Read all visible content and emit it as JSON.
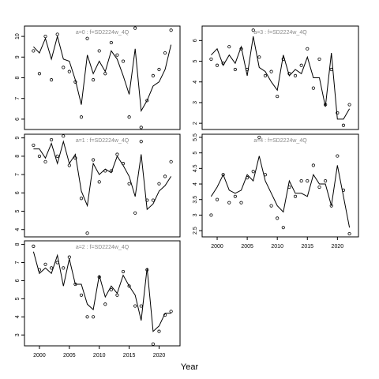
{
  "figure": {
    "xlabel": "Year"
  },
  "chart_data": [
    {
      "type": "line",
      "title": "a=0 : f=SD2224w_4Q",
      "xlim": [
        1997.5,
        2023.5
      ],
      "ylim": [
        5.5,
        10.5
      ],
      "yticks": [
        6,
        7,
        8,
        9,
        10
      ],
      "xticks": [],
      "series": [
        {
          "style": "line",
          "x": [
            1999,
            2000,
            2001,
            2002,
            2003,
            2004,
            2005,
            2006,
            2007,
            2008,
            2009,
            2010,
            2011,
            2012,
            2013,
            2014,
            2015,
            2016,
            2017,
            2018,
            2019,
            2020,
            2021,
            2022
          ],
          "values": [
            9.5,
            9.2,
            9.9,
            8.9,
            10.0,
            8.9,
            8.8,
            7.9,
            6.7,
            9.1,
            8.2,
            8.8,
            8.3,
            9.3,
            8.9,
            8.1,
            7.2,
            9.4,
            6.4,
            6.9,
            7.6,
            7.8,
            8.4,
            9.6
          ]
        },
        {
          "style": "points",
          "x": [
            1999,
            2000,
            2001,
            2002,
            2003,
            2004,
            2005,
            2006,
            2007,
            2008,
            2009,
            2010,
            2011,
            2012,
            2013,
            2014,
            2015,
            2016,
            2017,
            2018,
            2019,
            2020,
            2021,
            2022
          ],
          "values": [
            9.3,
            8.2,
            10.0,
            7.9,
            10.1,
            8.5,
            8.3,
            7.8,
            6.1,
            9.9,
            7.9,
            9.3,
            8.2,
            9.7,
            9.1,
            8.8,
            6.1,
            10.4,
            5.6,
            6.9,
            8.1,
            8.4,
            9.2,
            10.3
          ]
        }
      ]
    },
    {
      "type": "line",
      "title": "a=3 : f=SD2224w_4Q",
      "xlim": [
        1997.5,
        2023.5
      ],
      "ylim": [
        1.7,
        6.7
      ],
      "yticks": [
        2,
        3,
        4,
        5,
        6
      ],
      "xticks": [],
      "series": [
        {
          "style": "line",
          "x": [
            1999,
            2000,
            2001,
            2002,
            2003,
            2004,
            2005,
            2006,
            2007,
            2008,
            2009,
            2010,
            2011,
            2012,
            2013,
            2014,
            2015,
            2016,
            2017,
            2018,
            2019,
            2020,
            2021,
            2022
          ],
          "values": [
            5.3,
            5.6,
            4.8,
            5.3,
            4.9,
            5.7,
            4.3,
            6.2,
            4.7,
            4.5,
            4.0,
            3.6,
            5.3,
            4.3,
            4.6,
            4.4,
            5.2,
            4.2,
            4.2,
            2.8,
            5.4,
            2.2,
            2.2,
            2.7
          ]
        },
        {
          "style": "points",
          "x": [
            1999,
            2000,
            2001,
            2002,
            2003,
            2004,
            2005,
            2006,
            2007,
            2008,
            2009,
            2010,
            2011,
            2012,
            2013,
            2014,
            2015,
            2016,
            2017,
            2018,
            2019,
            2020,
            2021,
            2022
          ],
          "values": [
            5.1,
            4.8,
            4.9,
            5.7,
            4.6,
            5.6,
            4.6,
            6.5,
            5.2,
            4.3,
            4.5,
            3.3,
            5.1,
            4.4,
            4.3,
            4.8,
            5.6,
            3.7,
            5.1,
            2.9,
            4.6,
            2.5,
            1.9,
            2.9
          ]
        }
      ]
    },
    {
      "type": "line",
      "title": "a=1 : f=SD2224w_4Q",
      "xlim": [
        1997.5,
        2023.5
      ],
      "ylim": [
        3.6,
        9.2
      ],
      "yticks": [
        4,
        5,
        6,
        7,
        8,
        9
      ],
      "xticks": [],
      "series": [
        {
          "style": "line",
          "x": [
            1999,
            2000,
            2001,
            2002,
            2003,
            2004,
            2005,
            2006,
            2007,
            2008,
            2009,
            2010,
            2011,
            2012,
            2013,
            2014,
            2015,
            2016,
            2017,
            2018,
            2019,
            2020,
            2021,
            2022
          ],
          "values": [
            8.4,
            8.4,
            7.9,
            8.7,
            7.6,
            8.8,
            7.6,
            8.1,
            6.1,
            5.3,
            7.6,
            7.0,
            7.3,
            7.1,
            8.0,
            7.5,
            6.9,
            5.8,
            8.1,
            5.1,
            5.4,
            6.1,
            6.4,
            6.9
          ]
        },
        {
          "style": "points",
          "x": [
            1999,
            2000,
            2001,
            2002,
            2003,
            2004,
            2005,
            2006,
            2007,
            2008,
            2009,
            2010,
            2011,
            2012,
            2013,
            2014,
            2015,
            2016,
            2017,
            2018,
            2019,
            2020,
            2021,
            2022
          ],
          "values": [
            8.6,
            8.0,
            7.7,
            8.9,
            8.0,
            9.1,
            7.5,
            7.9,
            5.7,
            3.8,
            7.8,
            6.6,
            7.2,
            7.2,
            8.1,
            7.6,
            6.5,
            4.9,
            8.8,
            5.6,
            5.6,
            6.5,
            6.9,
            7.7
          ]
        }
      ]
    },
    {
      "type": "line",
      "title": "a=4 : f=SD2224w_4Q",
      "xlim": [
        1997.5,
        2023.5
      ],
      "ylim": [
        2.3,
        5.6
      ],
      "yticks": [
        2.5,
        3.0,
        3.5,
        4.0,
        4.5,
        5.0,
        5.5
      ],
      "xticks": [
        2000,
        2005,
        2010,
        2015,
        2020
      ],
      "series": [
        {
          "style": "line",
          "x": [
            1999,
            2000,
            2001,
            2002,
            2003,
            2004,
            2005,
            2006,
            2007,
            2008,
            2009,
            2010,
            2011,
            2012,
            2013,
            2014,
            2015,
            2016,
            2017,
            2018,
            2019,
            2020,
            2021,
            2022
          ],
          "values": [
            3.6,
            3.9,
            4.3,
            3.8,
            3.7,
            3.8,
            4.3,
            4.1,
            4.9,
            4.1,
            3.7,
            3.3,
            3.1,
            4.1,
            3.7,
            3.7,
            3.6,
            4.3,
            4.0,
            4.0,
            3.3,
            4.6,
            3.6,
            2.6
          ]
        },
        {
          "style": "points",
          "x": [
            1999,
            2000,
            2001,
            2002,
            2003,
            2004,
            2005,
            2006,
            2007,
            2008,
            2009,
            2010,
            2011,
            2012,
            2013,
            2014,
            2015,
            2016,
            2017,
            2018,
            2019,
            2020,
            2021,
            2022
          ],
          "values": [
            3.0,
            3.5,
            4.3,
            3.4,
            3.6,
            3.4,
            4.2,
            4.4,
            5.5,
            4.3,
            3.3,
            2.9,
            2.6,
            3.9,
            3.6,
            4.1,
            4.1,
            4.6,
            3.9,
            4.1,
            3.3,
            4.9,
            3.8,
            2.4
          ]
        }
      ]
    },
    {
      "type": "line",
      "title": "a=2 : f=SD2224w_4Q",
      "xlim": [
        1997.5,
        2023.5
      ],
      "ylim": [
        2.4,
        8.2
      ],
      "yticks": [
        3,
        4,
        5,
        6,
        7,
        8
      ],
      "xticks": [
        2000,
        2005,
        2010,
        2015,
        2020
      ],
      "series": [
        {
          "style": "line",
          "x": [
            1999,
            2000,
            2001,
            2002,
            2003,
            2004,
            2005,
            2006,
            2007,
            2008,
            2009,
            2010,
            2011,
            2012,
            2013,
            2014,
            2015,
            2016,
            2017,
            2018,
            2019,
            2020,
            2021,
            2022
          ],
          "values": [
            7.6,
            6.4,
            6.7,
            6.4,
            7.4,
            5.7,
            7.2,
            5.8,
            5.8,
            4.7,
            4.4,
            6.3,
            5.1,
            5.7,
            5.3,
            6.3,
            5.7,
            5.2,
            3.8,
            6.7,
            3.2,
            3.5,
            4.2,
            4.2
          ]
        },
        {
          "style": "points",
          "x": [
            1999,
            2000,
            2001,
            2002,
            2003,
            2004,
            2005,
            2006,
            2007,
            2008,
            2009,
            2010,
            2011,
            2012,
            2013,
            2014,
            2015,
            2016,
            2017,
            2018,
            2019,
            2020,
            2021,
            2022
          ],
          "values": [
            7.9,
            6.6,
            6.9,
            6.7,
            7.0,
            6.7,
            7.3,
            5.8,
            5.2,
            4.0,
            4.0,
            6.2,
            4.7,
            5.5,
            5.2,
            6.5,
            5.7,
            4.6,
            4.6,
            6.6,
            2.5,
            3.2,
            4.1,
            4.3
          ]
        }
      ]
    }
  ]
}
